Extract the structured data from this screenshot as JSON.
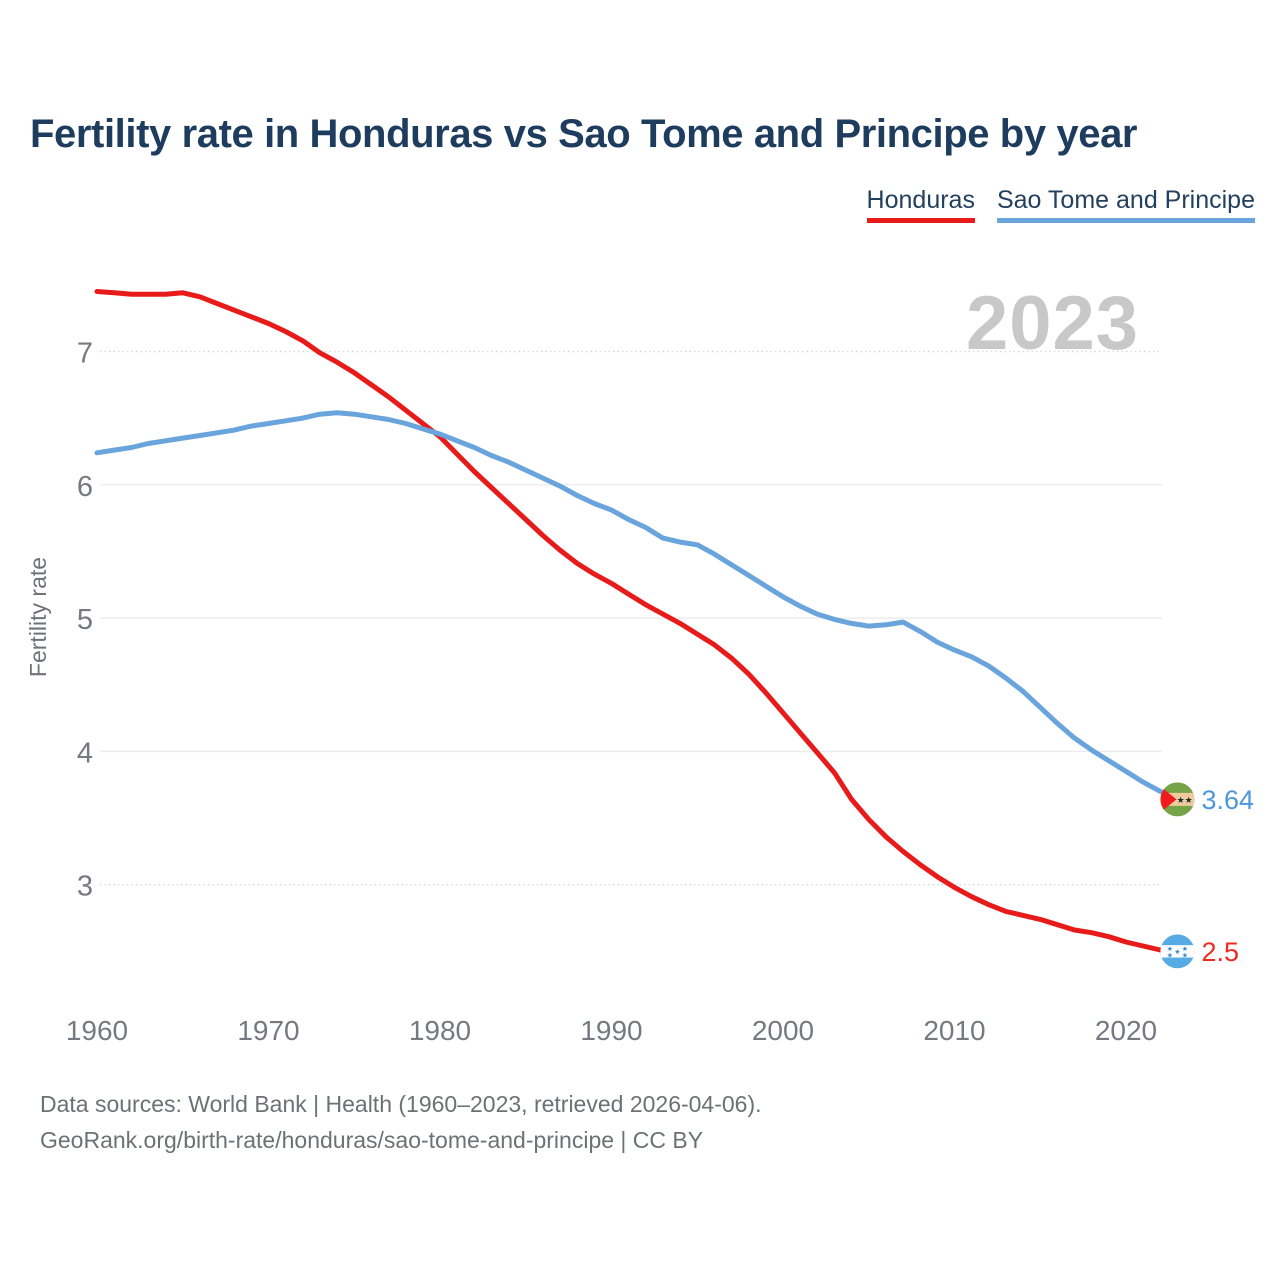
{
  "title": "Fertility rate in Honduras vs Sao Tome and Principe by year",
  "watermark": "2023",
  "legend": {
    "items": [
      {
        "label": "Honduras",
        "color": "#e81b1b"
      },
      {
        "label": "Sao Tome and Principe",
        "color": "#6aa4dd"
      }
    ]
  },
  "footer": {
    "line1": "Data sources: World Bank | Health (1960–2023, retrieved 2026-04-06).",
    "line2": "GeoRank.org/birth-rate/honduras/sao-tome-and-principe | CC BY"
  },
  "icons": {
    "red_series_marker": "honduras-flag-icon",
    "blue_series_marker": "sao-tome-and-principe-flag-icon"
  },
  "colors": {
    "title": "#1d3c5e",
    "watermark": "#c8c8c8",
    "red_line": "#e81b1b",
    "blue_line": "#6aa4dd",
    "red_value_label": "#ed2b22",
    "blue_value_label": "#4d97da",
    "honduras_flag_blue": "#57abe5",
    "honduras_flag_star": "#3e87cc",
    "sao_tome_flag_green": "#76a348",
    "sao_tome_flag_band": "#f0cb9e",
    "sao_tome_flag_triangle": "#ee1c1c"
  },
  "chart_data": {
    "type": "line",
    "title": "Fertility rate in Honduras vs Sao Tome and Principe by year",
    "xlabel": "",
    "ylabel": "Fertility rate",
    "x_range": [
      1960,
      2023
    ],
    "x_step": 1,
    "xticks": [
      1960,
      1970,
      1980,
      1990,
      2000,
      2010,
      2020
    ],
    "yticks": [
      3,
      4,
      5,
      6,
      7
    ],
    "ylim": [
      2.2,
      7.7
    ],
    "grid": "horizontal",
    "legend_position": "top-right",
    "annotation_year": "2023",
    "series": [
      {
        "name": "Honduras",
        "color": "#e81b1b",
        "value_label_color": "#ed2b22",
        "end_label": "2.5",
        "end_value": 2.5,
        "flag": "honduras",
        "values": [
          7.45,
          7.44,
          7.43,
          7.43,
          7.43,
          7.44,
          7.41,
          7.36,
          7.31,
          7.26,
          7.21,
          7.15,
          7.08,
          6.99,
          6.92,
          6.84,
          6.75,
          6.66,
          6.56,
          6.46,
          6.36,
          6.23,
          6.1,
          5.98,
          5.86,
          5.74,
          5.62,
          5.51,
          5.41,
          5.33,
          5.26,
          5.18,
          5.1,
          5.03,
          4.96,
          4.88,
          4.8,
          4.7,
          4.58,
          4.44,
          4.29,
          4.14,
          3.99,
          3.84,
          3.64,
          3.49,
          3.36,
          3.25,
          3.15,
          3.06,
          2.98,
          2.91,
          2.85,
          2.8,
          2.77,
          2.74,
          2.7,
          2.66,
          2.64,
          2.61,
          2.57,
          2.54,
          2.51,
          2.5
        ]
      },
      {
        "name": "Sao Tome and Principe",
        "color": "#6aa4dd",
        "value_label_color": "#4d97da",
        "end_label": "3.64",
        "end_value": 3.64,
        "flag": "sao-tome-and-principe",
        "values": [
          6.24,
          6.26,
          6.28,
          6.31,
          6.33,
          6.35,
          6.37,
          6.39,
          6.41,
          6.44,
          6.46,
          6.48,
          6.5,
          6.53,
          6.54,
          6.53,
          6.51,
          6.49,
          6.46,
          6.42,
          6.38,
          6.33,
          6.28,
          6.22,
          6.17,
          6.11,
          6.05,
          5.99,
          5.92,
          5.86,
          5.81,
          5.74,
          5.68,
          5.6,
          5.57,
          5.55,
          5.48,
          5.4,
          5.32,
          5.24,
          5.16,
          5.09,
          5.03,
          4.99,
          4.96,
          4.94,
          4.95,
          4.97,
          4.9,
          4.82,
          4.76,
          4.71,
          4.64,
          4.55,
          4.45,
          4.33,
          4.21,
          4.1,
          4.01,
          3.93,
          3.85,
          3.77,
          3.7,
          3.64
        ]
      }
    ]
  }
}
